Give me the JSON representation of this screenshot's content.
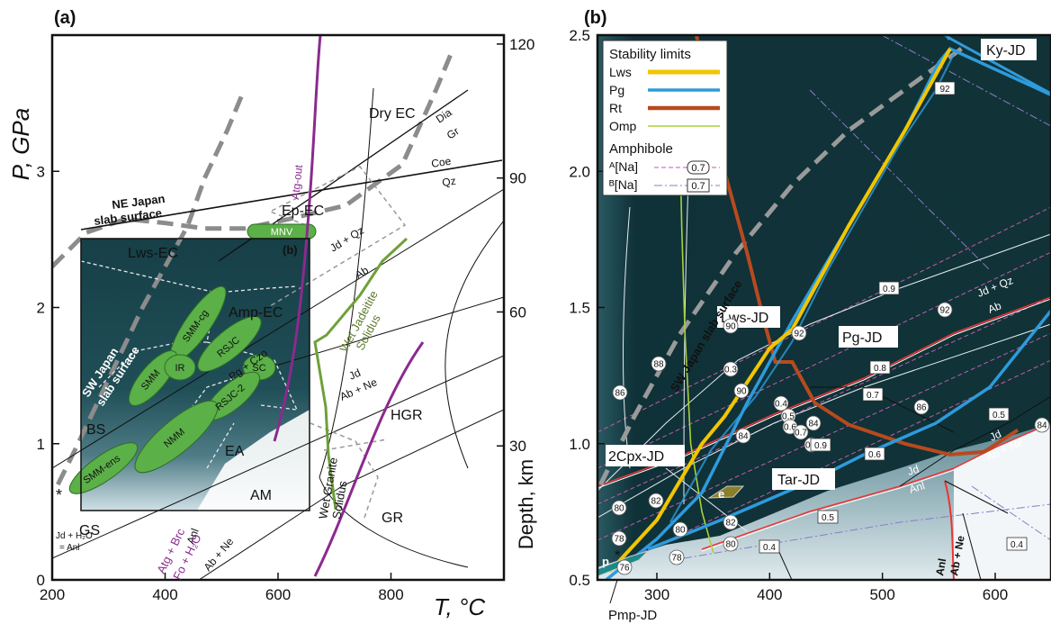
{
  "chart_data": [
    {
      "type": "line",
      "panel": "(a)",
      "xlabel": "T, °C",
      "ylabel": "P, GPa",
      "y2label": "Depth, km",
      "xlim": [
        200,
        1000
      ],
      "ylim": [
        0,
        4
      ],
      "xticks": [
        200,
        400,
        600,
        800
      ],
      "yticks": [
        0,
        1,
        2,
        3
      ],
      "y2ticks": [
        30,
        60,
        90,
        120
      ],
      "inset_label": "(b)",
      "facies": [
        "Dry EC",
        "Ep-EC",
        "Lws-EC",
        "Amp-EC",
        "BS",
        "EA",
        "AM",
        "GS",
        "HGR",
        "GR"
      ],
      "reactions": [
        "Dia",
        "Gr",
        "Coe",
        "Qz",
        "Jd + Qz",
        "Ab",
        "Jd",
        "Ab + Ne",
        "Anl",
        "Pg + Czo"
      ],
      "reaction_h2o": "Jd + H₂O",
      "reaction_anl": "= Anl",
      "curve_labels": [
        "Atg-out",
        "Atg + Brc",
        "Fo + H₂O",
        "Wet Jadeitite",
        "Solidus",
        "Wet Granite",
        "Solidus"
      ],
      "slab_labels": [
        "NE Japan",
        "slab surface",
        "SW Japan",
        "slab surface"
      ],
      "rock_units": [
        "MNV",
        "SMM-cg",
        "RSJC",
        "SMM",
        "IR",
        "SC",
        "RSJC-2",
        "NMM",
        "SMM-ens"
      ],
      "series": [
        {
          "name": "NE Japan slab surface",
          "x": [
            200,
            260,
            330,
            400,
            470,
            540,
            620,
            720,
            820,
            880,
            910
          ],
          "y": [
            2.3,
            2.55,
            2.65,
            2.62,
            2.58,
            2.58,
            2.65,
            2.75,
            3.05,
            3.6,
            3.9
          ]
        },
        {
          "name": "SW Japan slab surface",
          "x": [
            210,
            240,
            280,
            320,
            360,
            400,
            440,
            470,
            510,
            540
          ],
          "y": [
            0.7,
            0.95,
            1.3,
            1.65,
            2.0,
            2.3,
            2.6,
            2.95,
            3.3,
            3.6
          ]
        },
        {
          "name": "Atg-out",
          "x": [
            580,
            610,
            640,
            660,
            680,
            680
          ],
          "y": [
            0.3,
            0.8,
            1.6,
            2.2,
            2.8,
            4.0
          ]
        },
        {
          "name": "Wet Jadeitite Solidus",
          "x": [
            708,
            720,
            740,
            780,
            810,
            835
          ],
          "y": [
            0.5,
            1.1,
            1.7,
            2.0,
            2.25,
            2.5
          ]
        },
        {
          "name": "Jd + Qz = Ab",
          "x": [
            200,
            900
          ],
          "y": [
            1.05,
            2.7
          ]
        }
      ]
    },
    {
      "type": "line",
      "panel": "(b)",
      "xlabel": "",
      "ylabel": "",
      "xlim": [
        250,
        650
      ],
      "ylim": [
        0.5,
        2.5
      ],
      "xticks": [
        300,
        400,
        500,
        600
      ],
      "yticks": [
        0.5,
        1.0,
        1.5,
        2.0,
        2.5
      ],
      "legend": {
        "title": "Stability limits",
        "placement": "top-left",
        "subtitle": "Amphibole"
      },
      "fields": [
        "Ky-JD",
        "Lws-JD",
        "Pg-JD",
        "2Cpx-JD",
        "Tar-JD"
      ],
      "field_below": "Pmp-JD",
      "reactions": [
        "Jd + Qz",
        "Ab",
        "Jd",
        "Ab + Ne",
        "Jd",
        "Anl",
        "Anl",
        "Ab + Ne"
      ],
      "slab_label": "SW Japan slab surface",
      "badges": [
        "p",
        "e"
      ],
      "circled_labels": [
        "92",
        "92",
        "90",
        "90",
        "88",
        "86",
        "86",
        "84",
        "84",
        "84",
        "82",
        "82",
        "80",
        "80",
        "80",
        "78",
        "78",
        "76",
        "0.3",
        "0.4",
        "0.5",
        "0.6",
        "0.7",
        "0.8"
      ],
      "boxed_labels": [
        "92",
        "0.9",
        "0.8",
        "0.7",
        "0.9",
        "0.6",
        "0.5",
        "0.5",
        "0.4",
        "0.4"
      ],
      "series": [
        {
          "name": "Lws",
          "color": "#f2c500",
          "x": [
            258,
            300,
            340,
            360,
            400,
            420,
            470,
            520,
            560
          ],
          "y": [
            0.53,
            0.72,
            1.0,
            1.1,
            1.35,
            1.42,
            1.8,
            2.15,
            2.45
          ]
        },
        {
          "name": "Pg",
          "color": "#2e9bdc",
          "x": [
            255,
            300,
            340,
            380,
            420,
            470,
            520,
            550,
            560,
            650
          ],
          "y": [
            0.5,
            0.65,
            0.82,
            1.15,
            1.45,
            1.8,
            2.15,
            2.4,
            2.45,
            2.28
          ]
        },
        {
          "name": "Rt",
          "color": "#b84a1e",
          "x": [
            335,
            360,
            380,
            395,
            405,
            420,
            440,
            470,
            520,
            560,
            590,
            620
          ],
          "y": [
            2.5,
            2.0,
            1.7,
            1.45,
            1.3,
            1.3,
            1.15,
            1.07,
            1.0,
            0.96,
            0.97,
            1.05
          ]
        },
        {
          "name": "Omp",
          "color": "#a8d03a",
          "x": [
            320,
            322,
            325,
            330,
            340,
            350
          ],
          "y": [
            2.2,
            1.8,
            1.4,
            1.0,
            0.75,
            0.6
          ]
        },
        {
          "name": "ᴬ[Na]",
          "color": "#c05aa8",
          "x": [
            250,
            650
          ],
          "y": [
            0.6,
            1.5
          ]
        },
        {
          "name": "ᴮ[Na]",
          "color": "#7b6bb0",
          "x": [
            250,
            650
          ],
          "y": [
            0.62,
            1.45
          ]
        },
        {
          "name": "SW Japan slab surface",
          "color": "#999999",
          "x": [
            250,
            280,
            320,
            370,
            420,
            470,
            520,
            570
          ],
          "y": [
            0.85,
            1.1,
            1.4,
            1.7,
            1.95,
            2.15,
            2.3,
            2.45
          ]
        }
      ],
      "legend_samples": [
        "0.7",
        "0.7"
      ]
    }
  ]
}
